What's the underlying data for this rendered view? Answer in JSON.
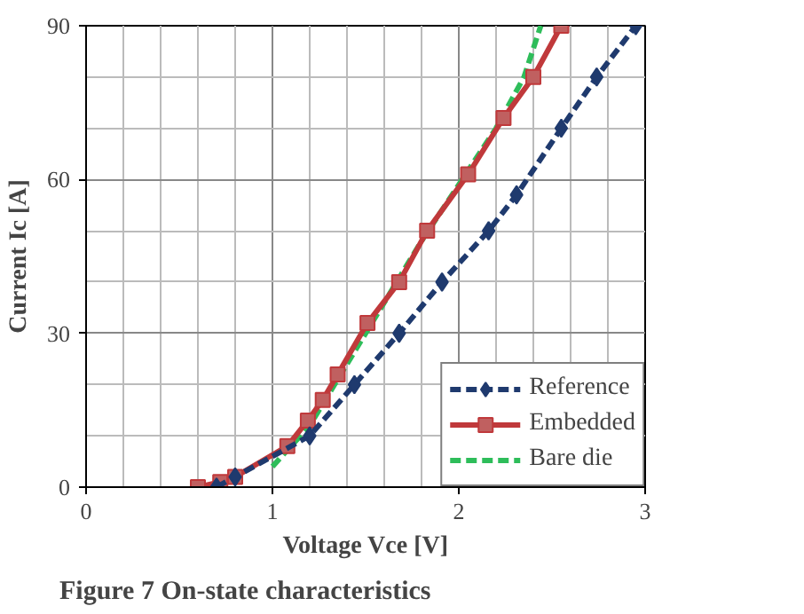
{
  "chart_data": {
    "type": "line",
    "xlabel": "Voltage Vce [V]",
    "ylabel": "Current Ic [A]",
    "annotations": [
      "Figure 7 On-state characteristics"
    ],
    "xlim": [
      0,
      3
    ],
    "ylim": [
      0,
      90
    ],
    "xticks": [
      0,
      1,
      2,
      3
    ],
    "yticks": [
      0,
      30,
      60,
      90
    ],
    "grid": true,
    "legend": "bottom right",
    "series": [
      {
        "name": "Reference",
        "color": "#1f3a6e",
        "marker": "diamond",
        "line_style": "dashed",
        "x": [
          0.7,
          0.8,
          1.2,
          1.44,
          1.68,
          1.91,
          2.16,
          2.31,
          2.55,
          2.74,
          2.95
        ],
        "values": [
          0,
          2,
          10,
          20,
          30,
          40,
          50,
          57,
          70,
          80,
          90
        ]
      },
      {
        "name": "Embedded",
        "color": "#c0393b",
        "marker": "square",
        "line_style": "solid",
        "x": [
          0.6,
          0.72,
          0.8,
          1.08,
          1.19,
          1.27,
          1.35,
          1.51,
          1.68,
          1.83,
          2.05,
          2.24,
          2.4,
          2.55
        ],
        "values": [
          0,
          1,
          2,
          8,
          13,
          17,
          22,
          32,
          40,
          50,
          61,
          72,
          80,
          90
        ]
      },
      {
        "name": "Bare die",
        "color": "#2ebd5a",
        "marker": "none",
        "line_style": "dashed",
        "x": [
          1.0,
          1.2,
          1.4,
          1.6,
          1.8,
          2.0,
          2.2,
          2.35,
          2.44
        ],
        "values": [
          4,
          12,
          24,
          36,
          48,
          59,
          70,
          80,
          90
        ]
      }
    ]
  }
}
